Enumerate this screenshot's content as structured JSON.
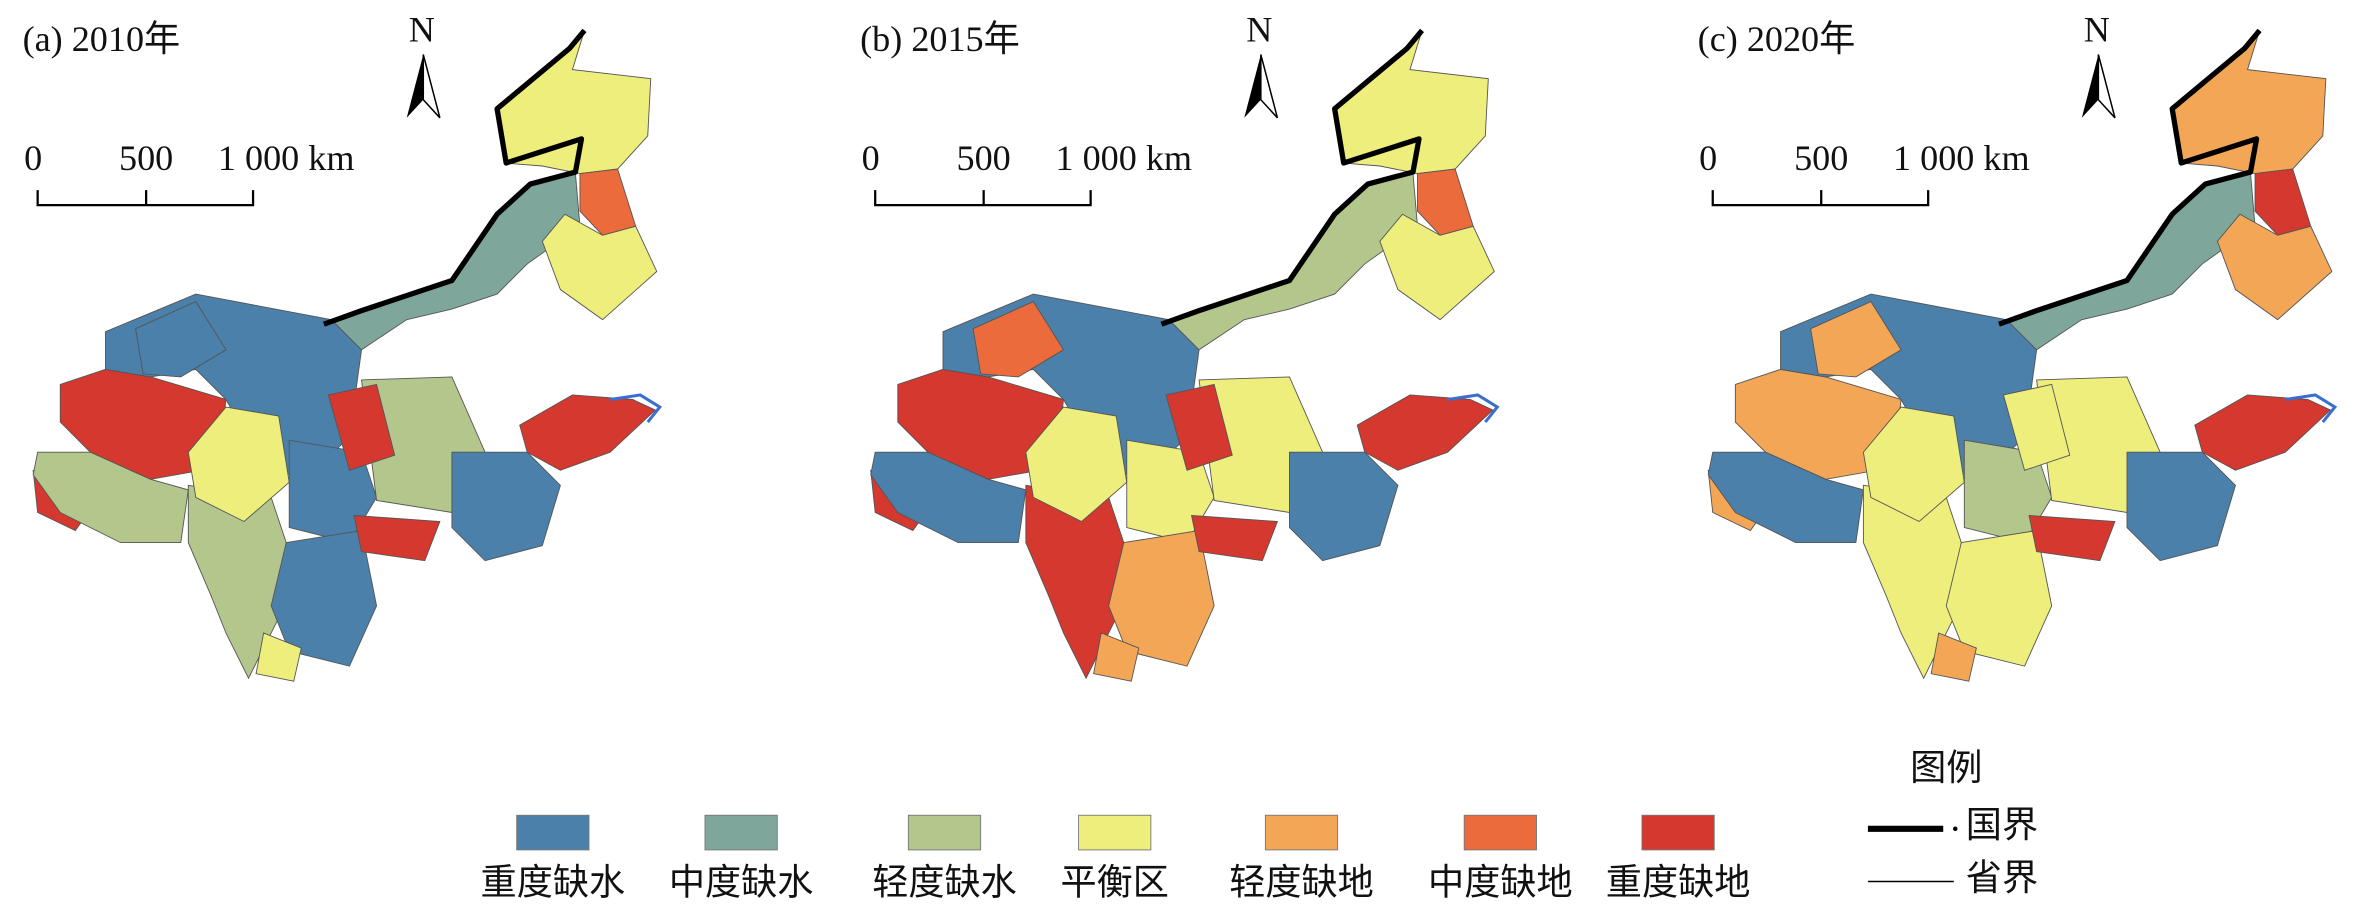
{
  "panels": [
    {
      "title": "(a) 2010年",
      "north": "N",
      "scale_labels": [
        "0",
        "500",
        "1 000 km"
      ]
    },
    {
      "title": "(b) 2015年",
      "north": "N",
      "scale_labels": [
        "0",
        "500",
        "1 000 km"
      ]
    },
    {
      "title": "(c) 2020年",
      "north": "N",
      "scale_labels": [
        "0",
        "500",
        "1 000 km"
      ]
    }
  ],
  "legend": {
    "title": "图例",
    "items": [
      {
        "label": "重度缺水",
        "color": "#4a80a9"
      },
      {
        "label": "中度缺水",
        "color": "#7ea69b"
      },
      {
        "label": "轻度缺水",
        "color": "#b3c78d"
      },
      {
        "label": "平衡区",
        "color": "#eeee7c"
      },
      {
        "label": "轻度缺地",
        "color": "#f2a656"
      },
      {
        "label": "中度缺地",
        "color": "#eb6b3d"
      },
      {
        "label": "重度缺地",
        "color": "#d5382e"
      }
    ],
    "boundaries": [
      {
        "label": "国界"
      },
      {
        "label": "省界"
      }
    ]
  }
}
